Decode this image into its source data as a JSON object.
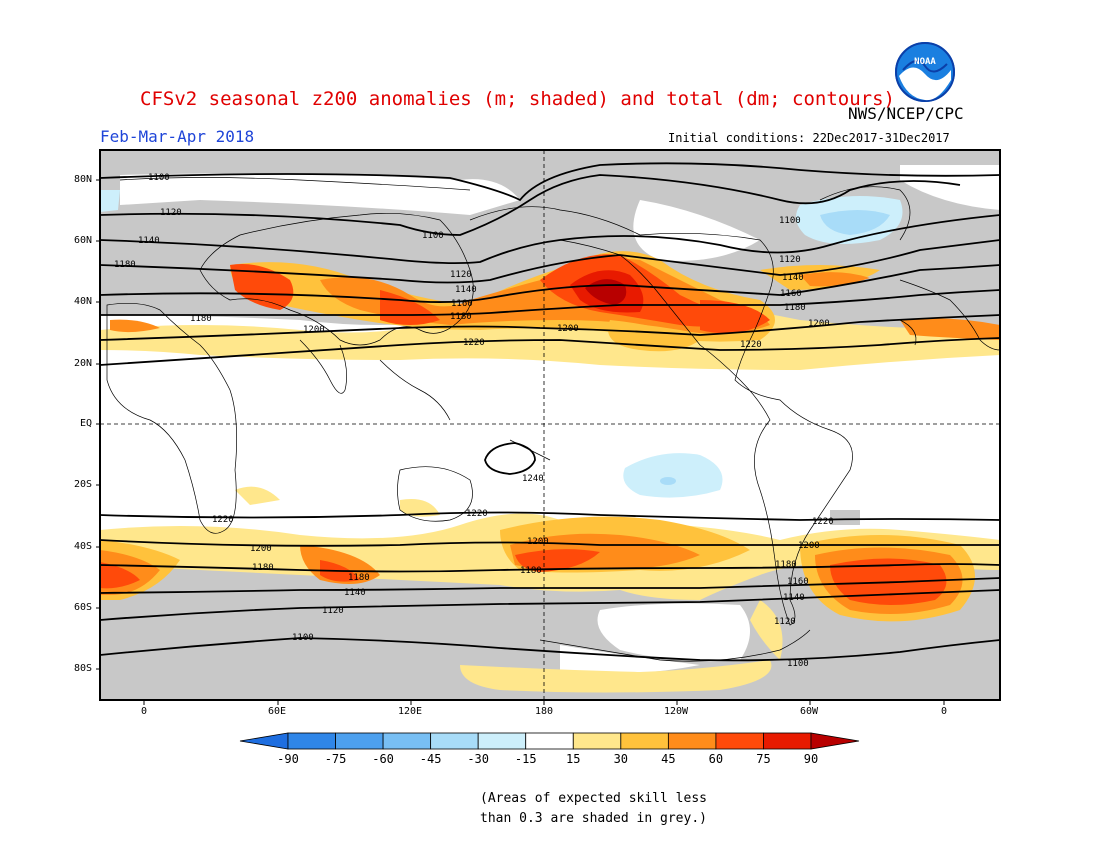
{
  "title": "CFSv2 seasonal z200 anomalies (m; shaded) and total (dm; contours)",
  "season": "Feb-Mar-Apr 2018",
  "agency": "NWS/NCEP/CPC",
  "logo_text": "NOAA",
  "initial_conditions": "Initial conditions: 22Dec2017-31Dec2017",
  "note_line1": "(Areas of expected skill less",
  "note_line2": "than 0.3 are shaded in grey.)",
  "lat_labels": [
    "80N",
    "60N",
    "40N",
    "20N",
    "EQ",
    "20S",
    "40S",
    "60S",
    "80S"
  ],
  "lon_labels": [
    "0",
    "60E",
    "120E",
    "180",
    "120W",
    "60W",
    "0"
  ],
  "colorbar": {
    "tick_labels": [
      "-90",
      "-75",
      "-60",
      "-45",
      "-30",
      "-15",
      "15",
      "30",
      "45",
      "60",
      "75",
      "90"
    ],
    "colors": [
      "#1e6ee0",
      "#2f86e8",
      "#4da0ee",
      "#78bff4",
      "#a8dcf8",
      "#cdeffb",
      "#ffffff",
      "#ffe78c",
      "#ffc23c",
      "#ff8c1a",
      "#ff4a0a",
      "#e81a00",
      "#b80000"
    ]
  },
  "contour_labels": [
    "1100",
    "1120",
    "1140",
    "1160",
    "1180",
    "1200",
    "1220",
    "1240"
  ],
  "colors": {
    "title": "#e00000",
    "season": "#1f45d8",
    "skill_grey": "#c8c8c8"
  }
}
